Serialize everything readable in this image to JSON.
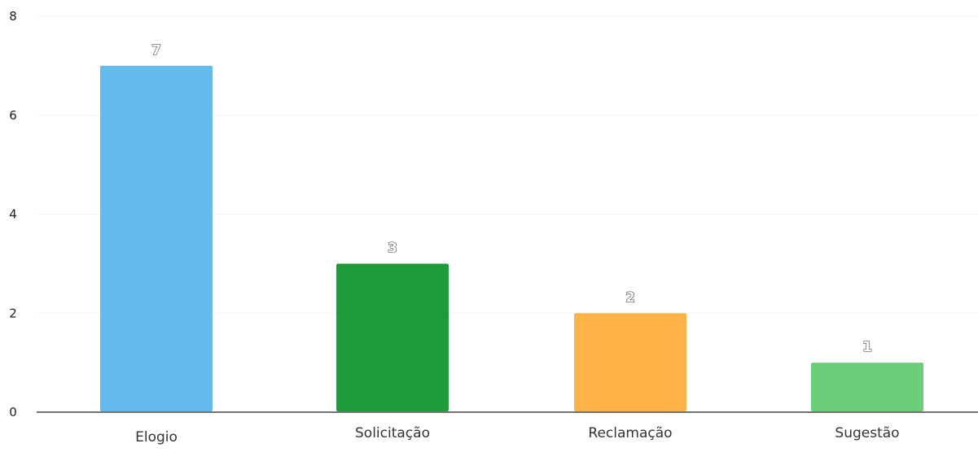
{
  "chart_data": {
    "type": "bar",
    "title": "",
    "xlabel": "",
    "ylabel": "",
    "categories": [
      "Elogio",
      "Solicitação",
      "Reclamação",
      "Sugestão"
    ],
    "values": [
      7,
      3,
      2,
      1
    ],
    "colors": [
      "#66bbee",
      "#1e9a3b",
      "#ffb347",
      "#6cce78"
    ],
    "ylim": [
      0,
      8
    ],
    "yticks": [
      0,
      2,
      4,
      6,
      8
    ],
    "ytick_labels": [
      "0",
      "2",
      "4",
      "6",
      "8"
    ],
    "data_labels": [
      "7",
      "3",
      "2",
      "1"
    ],
    "grid": true,
    "legend": false
  }
}
